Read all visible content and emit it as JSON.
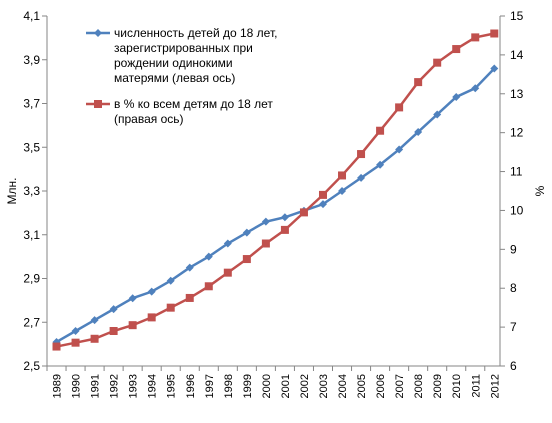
{
  "chart_data": {
    "type": "line",
    "x": [
      "1989",
      "1990",
      "1991",
      "1992",
      "1993",
      "1994",
      "1995",
      "1996",
      "1997",
      "1998",
      "1999",
      "2000",
      "2001",
      "2002",
      "2003",
      "2004",
      "2005",
      "2006",
      "2007",
      "2008",
      "2009",
      "2010",
      "2011",
      "2012"
    ],
    "y_left": {
      "label": "Млн.",
      "range": [
        2.5,
        4.1
      ],
      "ticks": [
        "2,5",
        "2,7",
        "2,9",
        "3,1",
        "3,3",
        "3,5",
        "3,7",
        "3,9",
        "4,1"
      ]
    },
    "y_right": {
      "label": "%",
      "range": [
        6,
        15
      ],
      "ticks": [
        "6",
        "7",
        "8",
        "9",
        "10",
        "11",
        "12",
        "13",
        "14",
        "15"
      ]
    },
    "series": [
      {
        "name_lines": [
          "численность детей до 18 лет,",
          "зарегистрированных при",
          "рождении одинокими",
          "матерями (левая ось)"
        ],
        "axis": "left",
        "color": "#4f81bd",
        "marker": "diamond",
        "values": [
          2.61,
          2.66,
          2.71,
          2.76,
          2.81,
          2.84,
          2.89,
          2.95,
          3.0,
          3.06,
          3.11,
          3.16,
          3.18,
          3.21,
          3.24,
          3.3,
          3.36,
          3.42,
          3.49,
          3.57,
          3.65,
          3.73,
          3.77,
          3.86
        ]
      },
      {
        "name_lines": [
          "в % ко всем детям до 18 лет",
          "(правая ось)"
        ],
        "axis": "right",
        "color": "#c0504d",
        "marker": "square",
        "values": [
          6.5,
          6.6,
          6.7,
          6.9,
          7.05,
          7.25,
          7.5,
          7.75,
          8.05,
          8.4,
          8.75,
          9.15,
          9.5,
          9.95,
          10.4,
          10.9,
          11.45,
          12.05,
          12.65,
          13.3,
          13.8,
          14.15,
          14.45,
          14.55
        ]
      }
    ],
    "legend_position": "top-left",
    "grid": false
  }
}
